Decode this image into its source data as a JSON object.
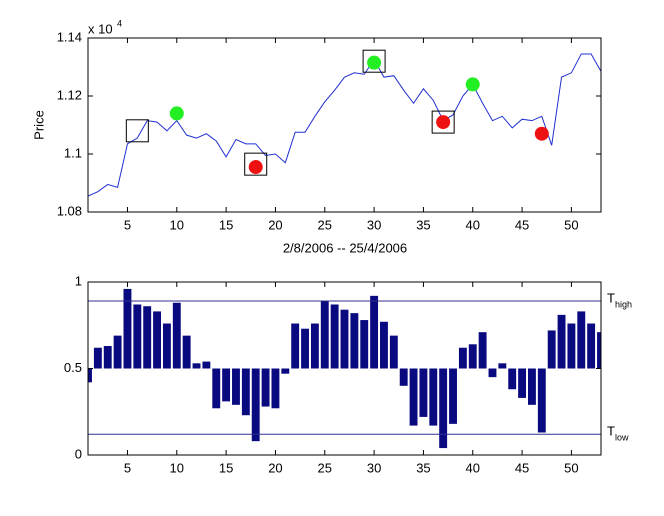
{
  "chart_data": [
    {
      "type": "line",
      "ylabel": "Price",
      "xlabel": "2/8/2006 -- 25/4/2006",
      "y_multiplier": "x 10",
      "y_multiplier_exponent": "4",
      "x": [
        1,
        2,
        3,
        4,
        5,
        6,
        7,
        8,
        9,
        10,
        11,
        12,
        13,
        14,
        15,
        16,
        17,
        18,
        19,
        20,
        21,
        22,
        23,
        24,
        25,
        26,
        27,
        28,
        29,
        30,
        31,
        32,
        33,
        34,
        35,
        36,
        37,
        38,
        39,
        40,
        41,
        42,
        43,
        44,
        45,
        46,
        47,
        48,
        49,
        50,
        51,
        52,
        53
      ],
      "series": [
        {
          "color": "#2030d0",
          "values": [
            1.0855,
            1.087,
            1.0895,
            1.0885,
            1.1035,
            1.1055,
            1.1115,
            1.111,
            1.108,
            1.1115,
            1.1065,
            1.1055,
            1.107,
            1.1045,
            1.099,
            1.105,
            1.1035,
            1.1035,
            1.0995,
            1.1,
            1.097,
            1.1075,
            1.1075,
            1.113,
            1.118,
            1.122,
            1.1265,
            1.128,
            1.1275,
            1.1325,
            1.1265,
            1.127,
            1.122,
            1.1175,
            1.1225,
            1.1185,
            1.1115,
            1.1135,
            1.12,
            1.124,
            1.1175,
            1.1115,
            1.113,
            1.109,
            1.112,
            1.1115,
            1.113,
            1.103,
            1.1265,
            1.128,
            1.1345,
            1.1345,
            1.1285
          ]
        }
      ],
      "points": [
        {
          "color": "#22ee22",
          "x": [
            10,
            30,
            40
          ],
          "values": [
            1.114,
            1.1315,
            1.124
          ]
        },
        {
          "color": "#ee1111",
          "x": [
            18,
            37,
            47
          ],
          "values": [
            1.0955,
            1.111,
            1.107
          ]
        }
      ],
      "boxes": {
        "x": [
          6,
          18,
          30,
          37
        ],
        "values": [
          1.108,
          1.0965,
          1.132,
          1.111
        ]
      },
      "xlim": [
        1,
        53
      ],
      "ylim": [
        1.08,
        1.14
      ],
      "xticks": [
        5,
        10,
        15,
        20,
        25,
        30,
        35,
        40,
        45,
        50
      ],
      "yticks": [
        1.08,
        1.1,
        1.12,
        1.14
      ]
    },
    {
      "type": "bar",
      "x": [
        1,
        2,
        3,
        4,
        5,
        6,
        7,
        8,
        9,
        10,
        11,
        12,
        13,
        14,
        15,
        16,
        17,
        18,
        19,
        20,
        21,
        22,
        23,
        24,
        25,
        26,
        27,
        28,
        29,
        30,
        31,
        32,
        33,
        34,
        35,
        36,
        37,
        38,
        39,
        40,
        41,
        42,
        43,
        44,
        45,
        46,
        47,
        48,
        49,
        50,
        51,
        52,
        53
      ],
      "values": [
        0.42,
        0.62,
        0.63,
        0.69,
        0.96,
        0.87,
        0.86,
        0.83,
        0.76,
        0.88,
        0.69,
        0.53,
        0.54,
        0.27,
        0.31,
        0.29,
        0.23,
        0.08,
        0.28,
        0.27,
        0.47,
        0.76,
        0.73,
        0.76,
        0.89,
        0.87,
        0.84,
        0.82,
        0.78,
        0.92,
        0.77,
        0.69,
        0.4,
        0.17,
        0.22,
        0.17,
        0.04,
        0.18,
        0.62,
        0.64,
        0.71,
        0.45,
        0.53,
        0.38,
        0.33,
        0.29,
        0.13,
        0.72,
        0.81,
        0.76,
        0.83,
        0.76,
        0.71
      ],
      "baseline": 0.5,
      "color": "#0a0a80",
      "thresholds": [
        {
          "value": 0.89,
          "label": "T",
          "sub": "high"
        },
        {
          "value": 0.12,
          "label": "T",
          "sub": "low"
        }
      ],
      "xlim": [
        1,
        53
      ],
      "ylim": [
        0,
        1
      ],
      "xticks": [
        5,
        10,
        15,
        20,
        25,
        30,
        35,
        40,
        45,
        50
      ],
      "yticks": [
        0,
        0.5,
        1
      ]
    }
  ]
}
